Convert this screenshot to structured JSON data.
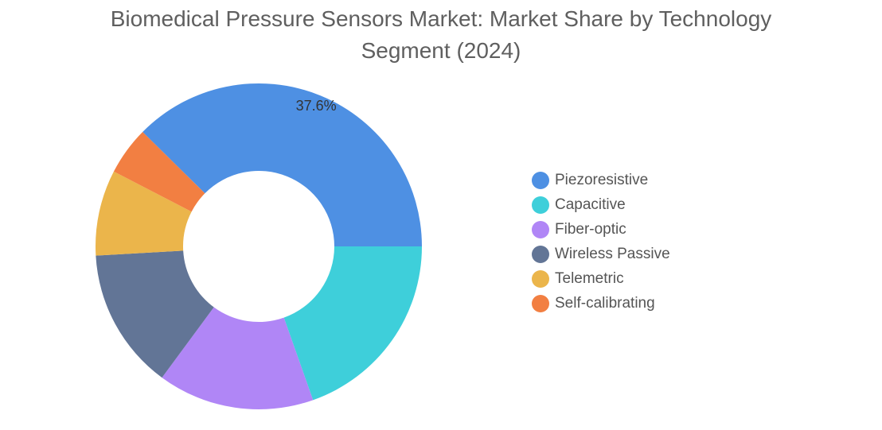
{
  "chart_data": {
    "type": "pie",
    "title": "Biomedical Pressure Sensors Market: Market Share by Technology Segment (2024)",
    "title_lines": [
      "Biomedical Pressure Sensors Market: Market Share by Technology",
      "Segment (2024)"
    ],
    "donut": true,
    "legend_position": "right",
    "slices": [
      {
        "name": "Piezoresistive",
        "value": 37.6,
        "color": "#4e90e3",
        "label": "37.6%"
      },
      {
        "name": "Capacitive",
        "value": 19.6,
        "color": "#3ecfda",
        "label": ""
      },
      {
        "name": "Fiber-optic",
        "value": 15.5,
        "color": "#b086f6",
        "label": ""
      },
      {
        "name": "Wireless Passive",
        "value": 14.0,
        "color": "#627596",
        "label": ""
      },
      {
        "name": "Telemetric",
        "value": 8.5,
        "color": "#ebb54b",
        "label": ""
      },
      {
        "name": "Self-calibrating",
        "value": 4.8,
        "color": "#f27f42",
        "label": ""
      }
    ]
  }
}
